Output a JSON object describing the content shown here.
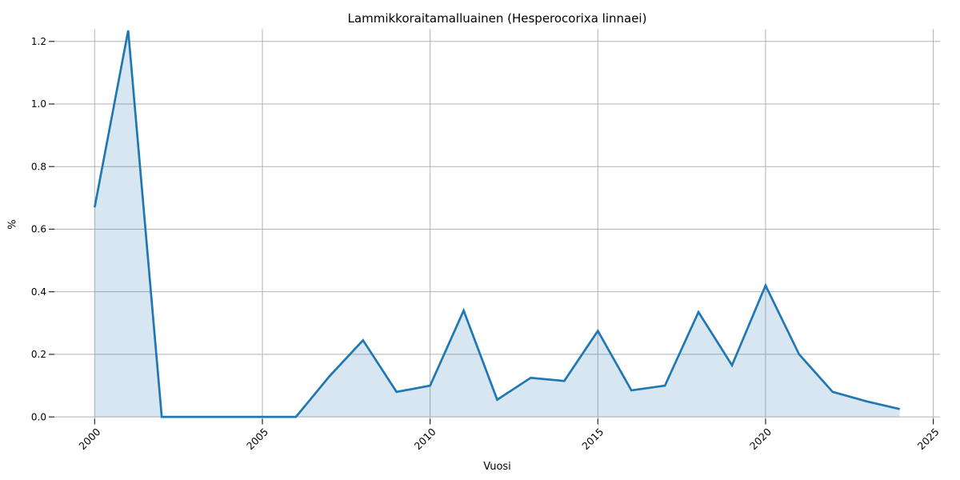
{
  "chart_data": {
    "type": "area",
    "title": "Lammikkoraitamalluainen (Hesperocorixa linnaei)",
    "xlabel": "Vuosi",
    "ylabel": "%",
    "x": [
      2000,
      2001,
      2002,
      2003,
      2004,
      2005,
      2006,
      2007,
      2008,
      2009,
      2010,
      2011,
      2012,
      2013,
      2014,
      2015,
      2016,
      2017,
      2018,
      2019,
      2020,
      2021,
      2022,
      2023,
      2024
    ],
    "values": [
      0.67,
      1.235,
      0.0,
      0.0,
      0.0,
      0.0,
      0.0,
      0.13,
      0.245,
      0.08,
      0.1,
      0.34,
      0.055,
      0.125,
      0.115,
      0.275,
      0.085,
      0.1,
      0.335,
      0.165,
      0.42,
      0.2,
      0.08,
      0.05,
      0.025
    ],
    "xticks": [
      2000,
      2005,
      2010,
      2015,
      2020,
      2025
    ],
    "yticks": [
      0.0,
      0.2,
      0.4,
      0.6,
      0.8,
      1.0,
      1.2
    ],
    "xlim": [
      1998.8,
      2025.2
    ],
    "ylim": [
      -0.006,
      1.239
    ],
    "grid": true,
    "legend": false,
    "line_color": "#1f77b4",
    "fill_color": "rgba(31,119,180,0.18)",
    "grid_color": "#b2b2b2",
    "tick_color": "#262626",
    "text_color": "#000000"
  }
}
